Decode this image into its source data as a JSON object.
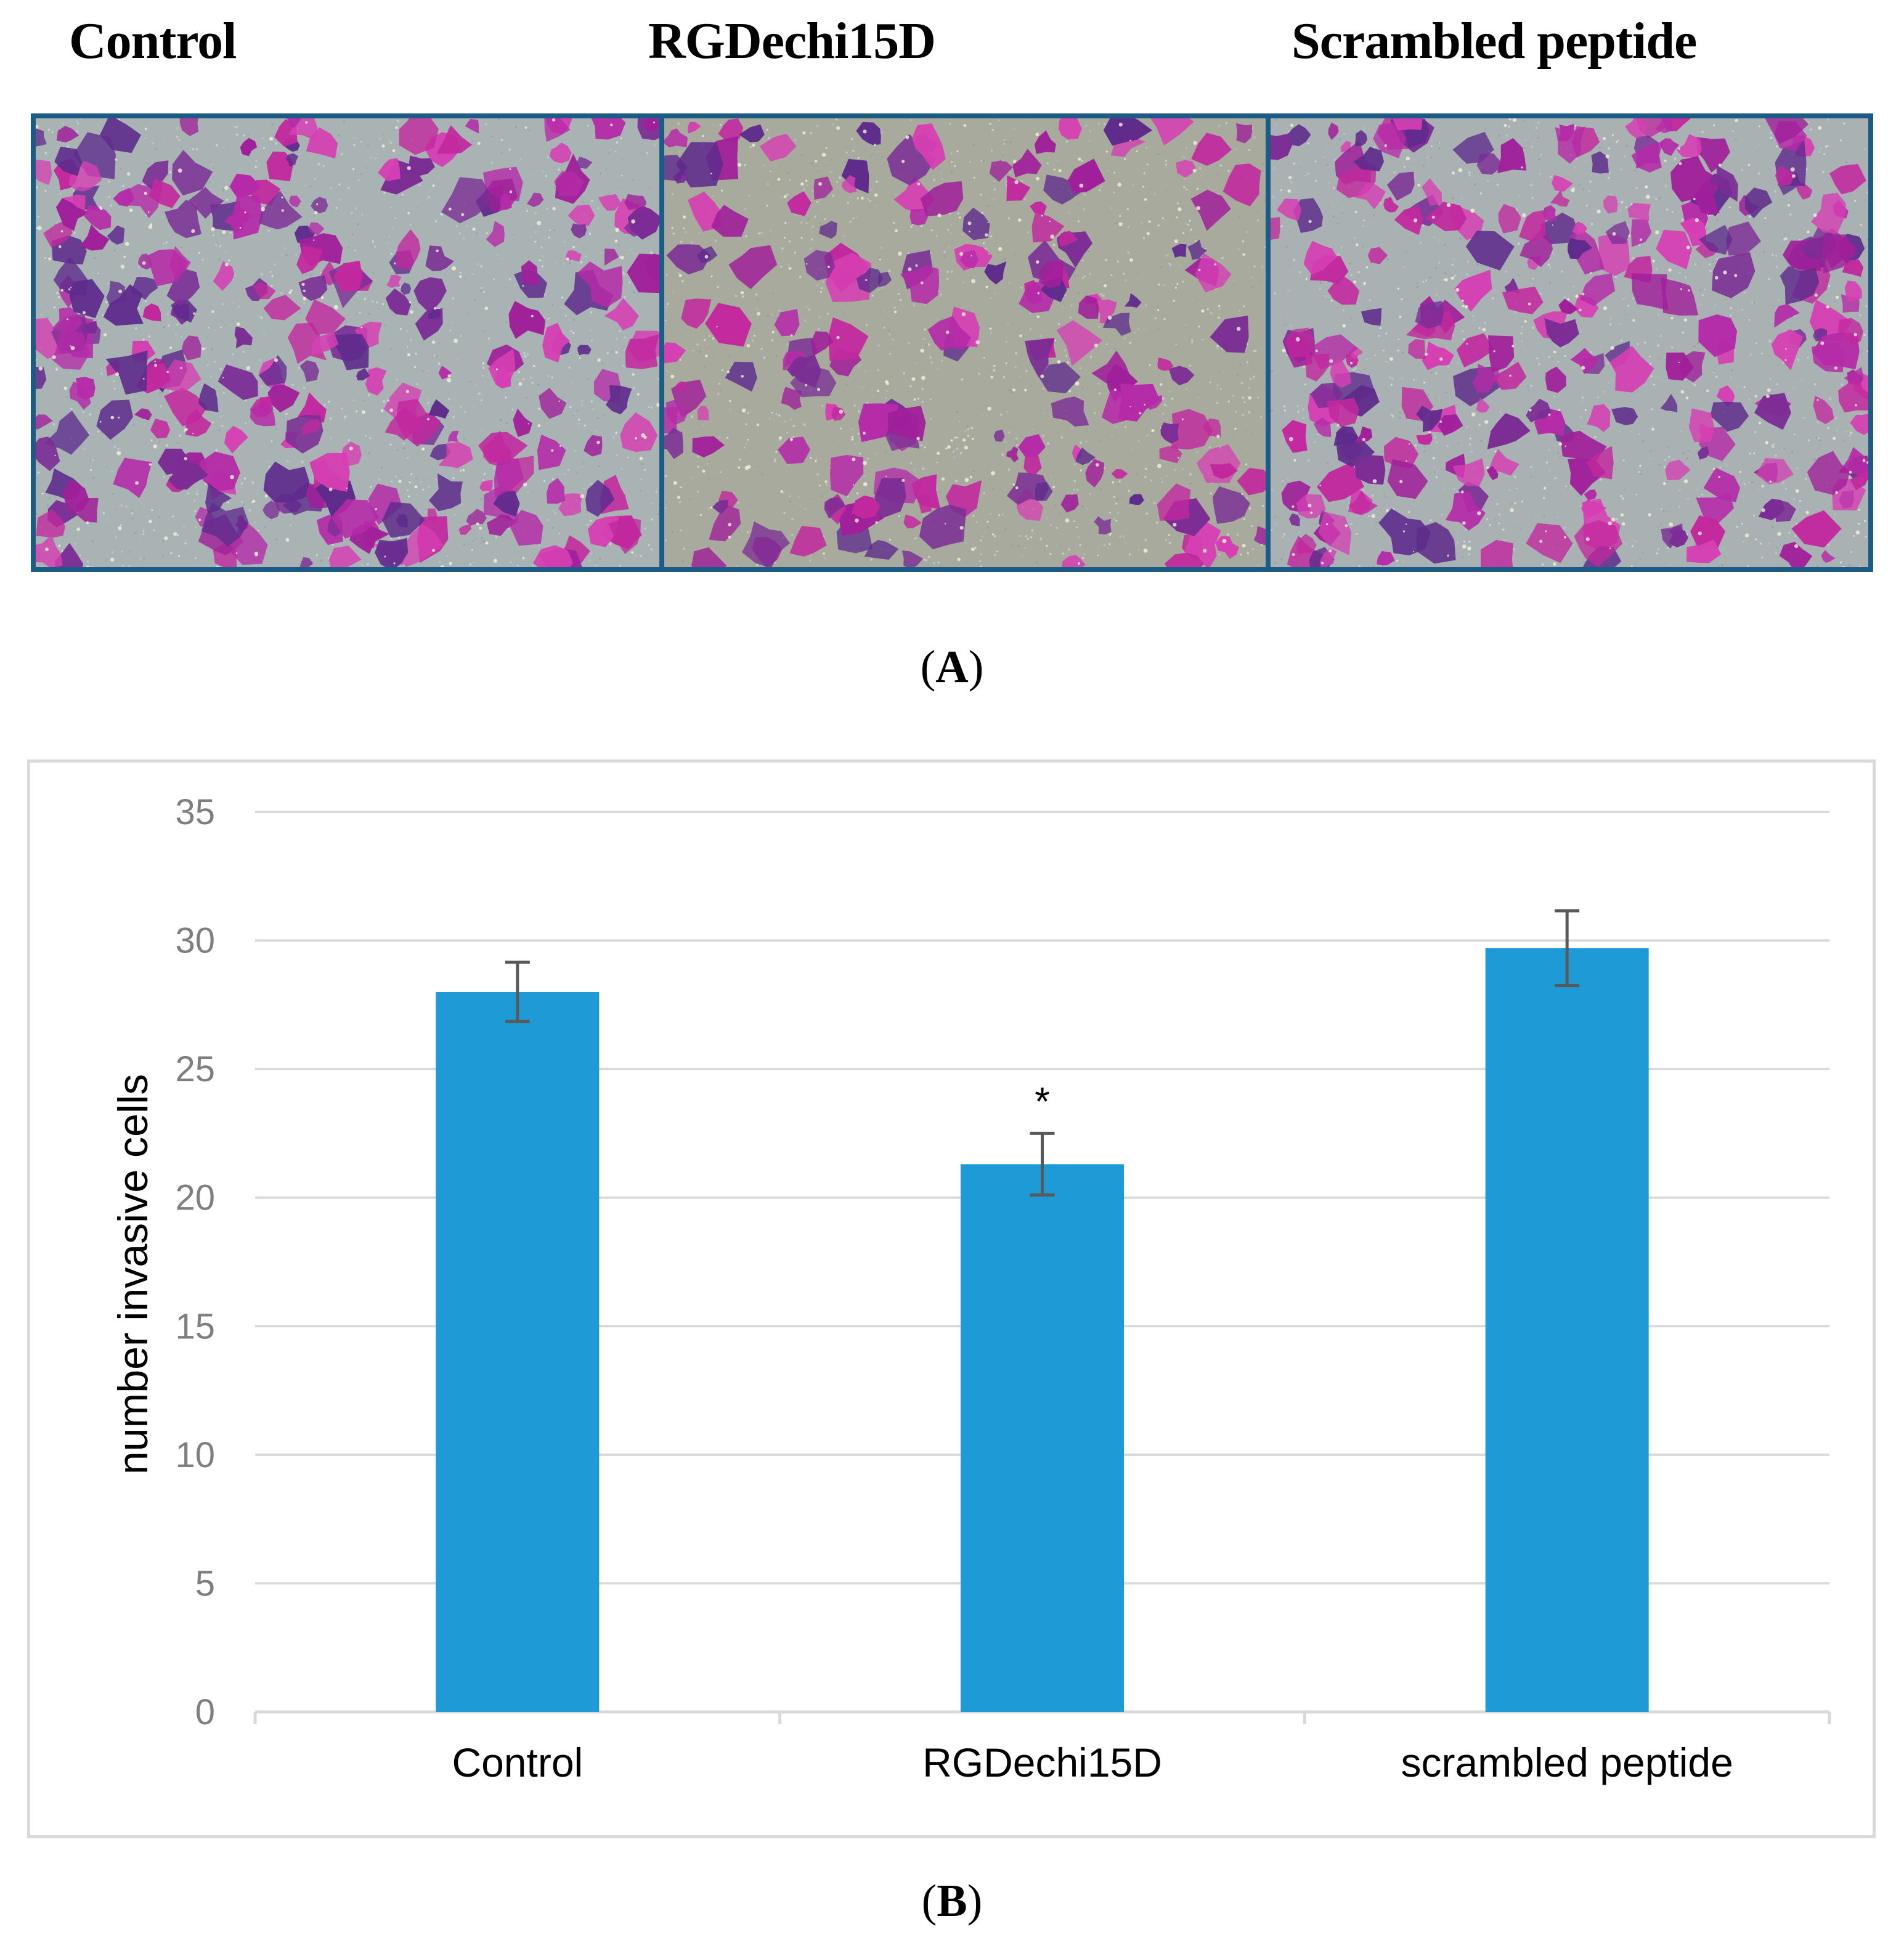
{
  "panel_a": {
    "labels": [
      "Control",
      "RGDechi15D",
      "Scrambled peptide"
    ],
    "caption_open": "(",
    "caption_letter": "A",
    "caption_close": ")"
  },
  "panel_b": {
    "caption_open": "(",
    "caption_letter": "B",
    "caption_close": ")"
  },
  "colors": {
    "bar": "#1e9bd7",
    "grid": "#d9d9d9",
    "error": "#595959",
    "tick_text": "#7f7f7f",
    "frame": "#1b5b86"
  },
  "chart_data": {
    "type": "bar",
    "title": "",
    "xlabel": "",
    "ylabel": "number invasive cells",
    "categories": [
      "Control",
      "RGDechi15D",
      "scrambled peptide"
    ],
    "values": [
      28.0,
      21.3,
      29.7
    ],
    "errors": [
      1.15,
      1.2,
      1.45
    ],
    "annotations": [
      "",
      "*",
      ""
    ],
    "ylim": [
      0,
      35
    ],
    "yticks": [
      0,
      5,
      10,
      15,
      20,
      25,
      30,
      35
    ],
    "grid": true,
    "legend": "none"
  }
}
